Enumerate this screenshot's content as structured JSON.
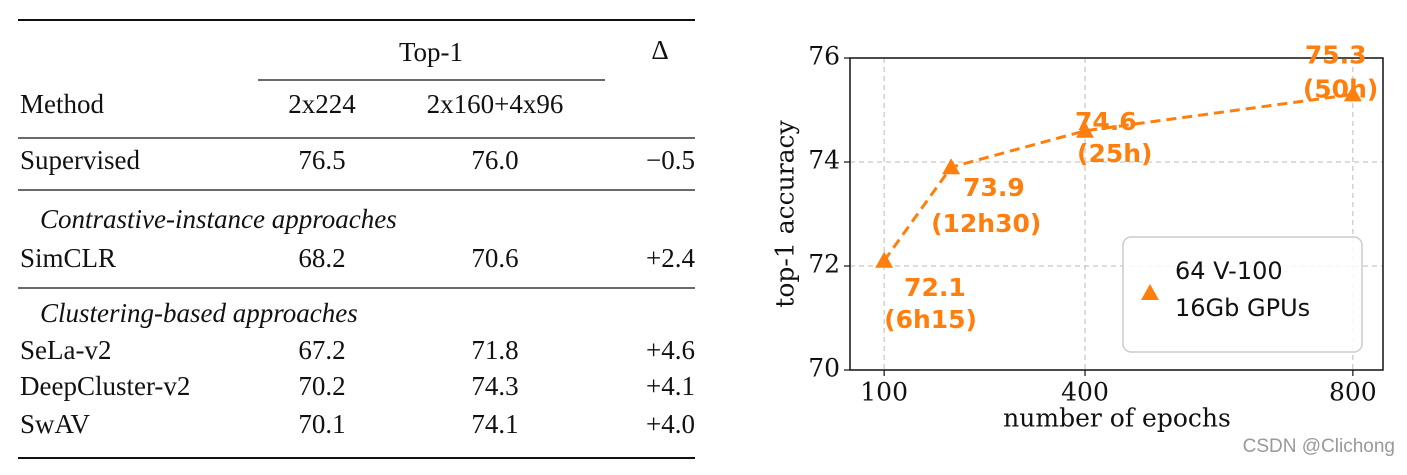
{
  "table": {
    "header": {
      "group": "Top-1",
      "delta": "Δ",
      "columns": [
        "Method",
        "2x224",
        "2x160+4x96"
      ]
    },
    "rows": [
      [
        "Supervised",
        "76.5",
        "76.0",
        "−0.5"
      ]
    ],
    "sections": [
      {
        "title": "Contrastive-instance approaches",
        "rows": [
          [
            "SimCLR",
            "68.2",
            "70.6",
            "+2.4"
          ]
        ]
      },
      {
        "title": "Clustering-based approaches",
        "rows": [
          [
            "SeLa-v2",
            "67.2",
            "71.8",
            "+4.6"
          ],
          [
            "DeepCluster-v2",
            "70.2",
            "74.3",
            "+4.1"
          ],
          [
            "SwAV",
            "70.1",
            "74.1",
            "+4.0"
          ]
        ]
      }
    ]
  },
  "chart_data": {
    "type": "line",
    "x_label": "number of epochs",
    "y_label": "top-1 accuracy",
    "series": [
      {
        "name": "64 V-100 16Gb GPUs",
        "legend_lines": [
          "64 V-100",
          "16Gb GPUs"
        ],
        "color": "#ff7f0e",
        "x": [
          100,
          200,
          400,
          800
        ],
        "values": [
          72.1,
          73.9,
          74.6,
          75.3
        ],
        "value_labels": [
          "72.1",
          "73.9",
          "74.6",
          "75.3"
        ],
        "annotations": [
          "(6h15)",
          "(12h30)",
          "(25h)",
          "(50h)"
        ]
      }
    ],
    "xlim": [
      49,
      845
    ],
    "ylim": [
      70,
      76
    ],
    "xticks": [
      100,
      400,
      800
    ],
    "yticks": [
      70,
      72,
      74,
      76
    ],
    "grid": true
  },
  "watermark": "CSDN @Clichong"
}
